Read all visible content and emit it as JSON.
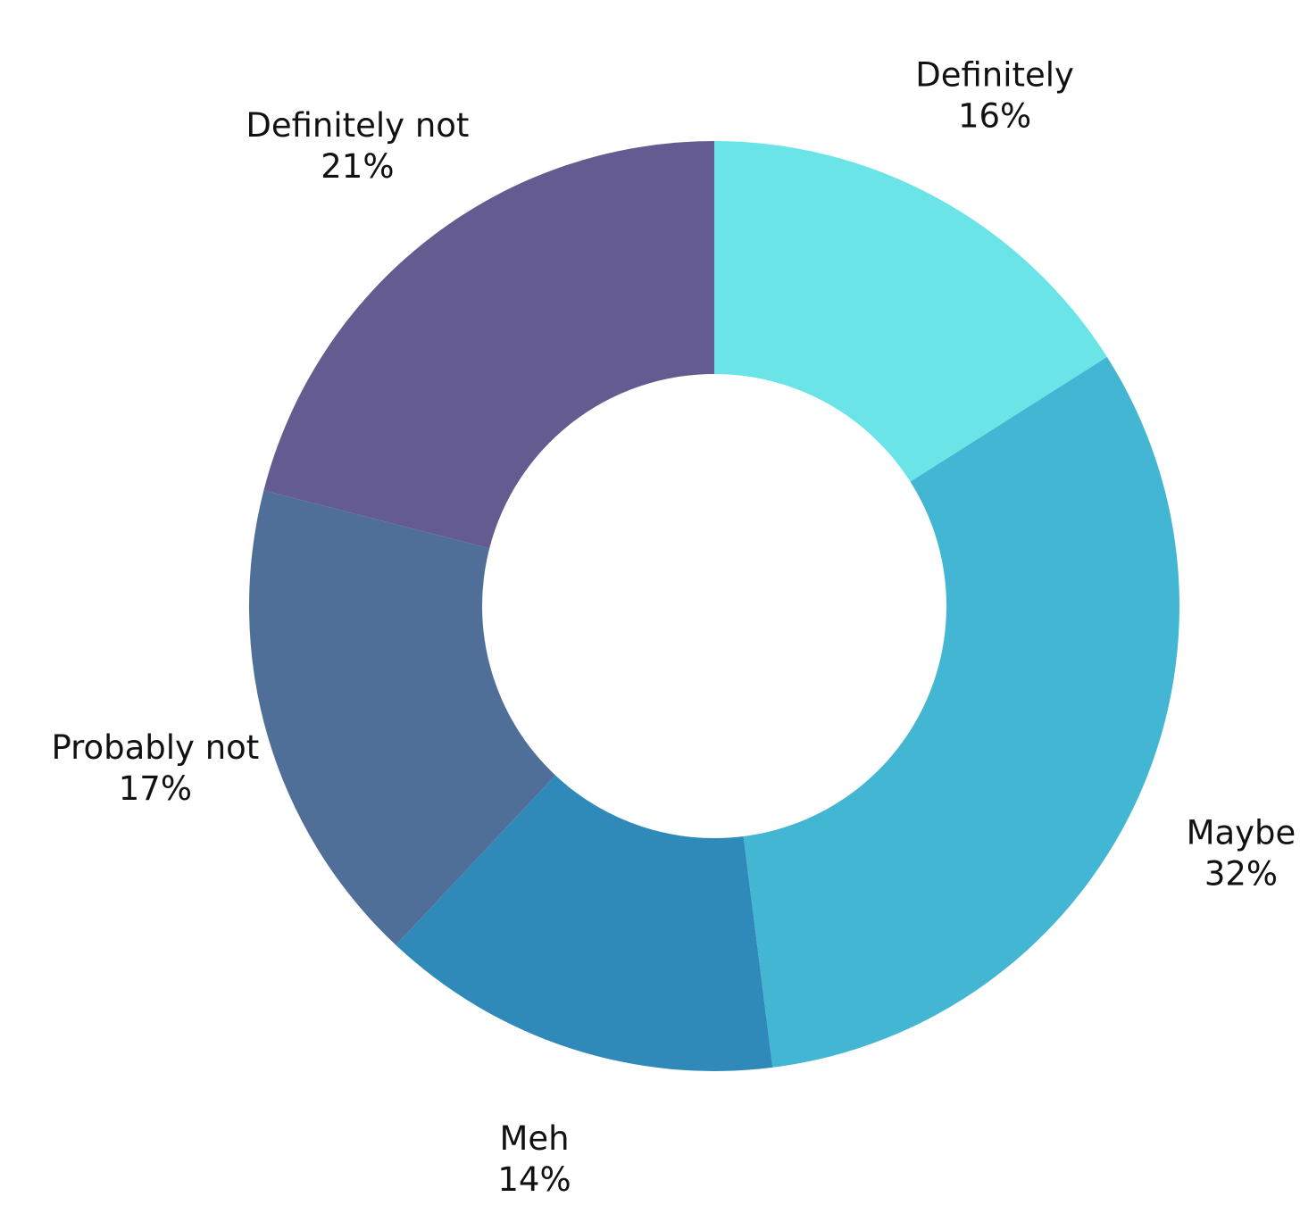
{
  "chart_data": {
    "type": "pie",
    "variant": "donut",
    "start_angle_deg": 0,
    "direction": "clockwise",
    "slices": [
      {
        "label": "Definitely",
        "value": 16,
        "value_label": "16%",
        "color": "#6be4e8"
      },
      {
        "label": "Maybe",
        "value": 32,
        "value_label": "32%",
        "color": "#43b6d4"
      },
      {
        "label": "Meh",
        "value": 14,
        "value_label": "14%",
        "color": "#308ab9"
      },
      {
        "label": "Probably not",
        "value": 17,
        "value_label": "17%",
        "color": "#4f6f99"
      },
      {
        "label": "Definitely not",
        "value": 21,
        "value_label": "21%",
        "color": "#645c91"
      }
    ],
    "title": "",
    "legend": "none"
  }
}
